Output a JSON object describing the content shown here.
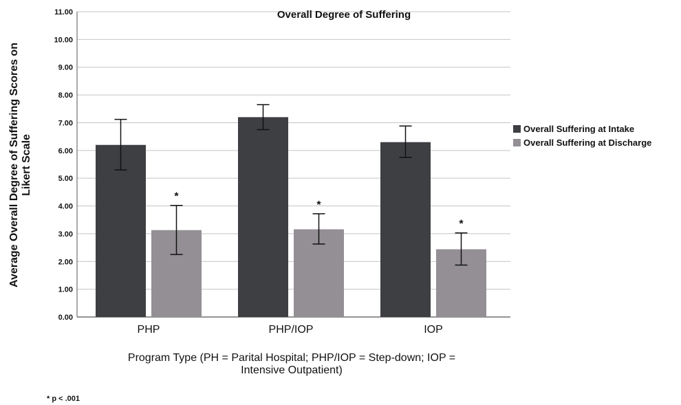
{
  "chart_data": {
    "type": "bar",
    "title": "Overall Degree of Suffering",
    "xlabel": "Program Type (PH = Parital Hospital; PHP/IOP = Step-down; IOP =",
    "xlabel_line2": "Intensive Outpatient)",
    "ylabel": "Average Overall Degree of Suffering Scores on",
    "ylabel_line2": "Likert Scale",
    "ylim": [
      0,
      11
    ],
    "yticks": [
      "0.00",
      "1.00",
      "2.00",
      "3.00",
      "4.00",
      "5.00",
      "6.00",
      "7.00",
      "8.00",
      "9.00",
      "10.00",
      "11.00"
    ],
    "grid": true,
    "legend_position": "right",
    "categories": [
      "PHP",
      "PHP/IOP",
      "IOP"
    ],
    "series": [
      {
        "name": "Overall Suffering at Intake",
        "color": "#3d3f42",
        "values": [
          6.2,
          7.2,
          6.3
        ],
        "err_low": [
          5.3,
          6.75,
          5.75
        ],
        "err_high": [
          7.12,
          7.65,
          6.88
        ]
      },
      {
        "name": "Overall Suffering at Discharge",
        "color": "#938f94",
        "values": [
          3.13,
          3.16,
          2.44
        ],
        "err_low": [
          2.25,
          2.63,
          1.87
        ],
        "err_high": [
          4.02,
          3.72,
          3.03
        ]
      }
    ],
    "annotations": [
      "*",
      "*",
      "*"
    ],
    "footnote": "* p < .001"
  }
}
